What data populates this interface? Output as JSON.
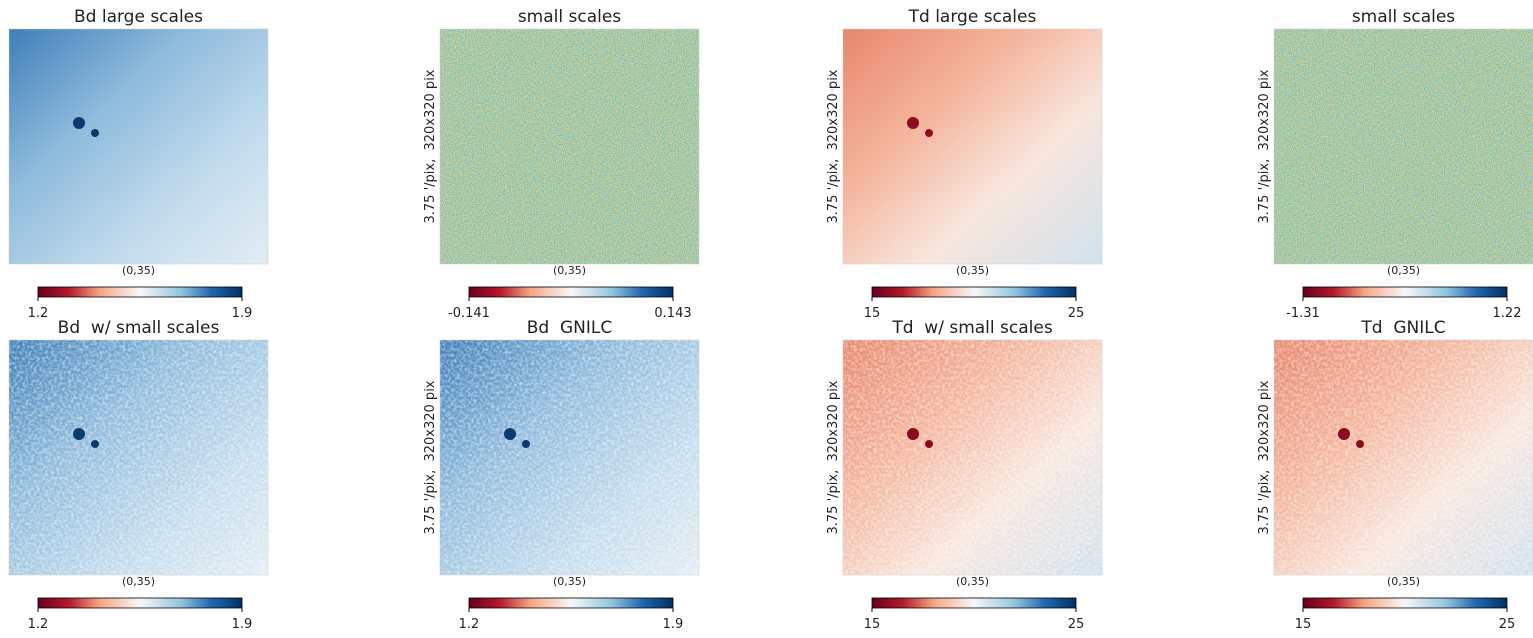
{
  "panels": [
    {
      "title": "Bd large scales",
      "coord_label": "(0,35)",
      "colorbar": {
        "min": 1.2,
        "max": 1.9
      }
    },
    {
      "title": "small scales",
      "coord_label": "(0,35)",
      "side_label": "3.75 '/pix,  320x320 pix",
      "colorbar": {
        "min": -0.141,
        "max": 0.143
      }
    },
    {
      "title": "Td large scales",
      "coord_label": "(0,35)",
      "side_label": "3.75 '/pix,  320x320 pix",
      "colorbar": {
        "min": 15,
        "max": 25
      }
    },
    {
      "title": "small scales",
      "coord_label": "(0,35)",
      "side_label": "3.75 '/pix,  320x320 pix",
      "colorbar": {
        "min": -1.31,
        "max": 1.22
      }
    },
    {
      "title": "Bd  w/ small scales",
      "coord_label": "(0,35)",
      "colorbar": {
        "min": 1.2,
        "max": 1.9
      }
    },
    {
      "title": "Bd  GNILC",
      "coord_label": "(0,35)",
      "side_label": "3.75 '/pix,  320x320 pix",
      "colorbar": {
        "min": 1.2,
        "max": 1.9
      }
    },
    {
      "title": "Td  w/ small scales",
      "coord_label": "(0,35)",
      "side_label": "3.75 '/pix,  320x320 pix",
      "colorbar": {
        "min": 15,
        "max": 25
      }
    },
    {
      "title": "Td  GNILC",
      "coord_label": "(0,35)",
      "side_label": "3.75 '/pix,  320x320 pix",
      "colorbar": {
        "min": 15,
        "max": 25
      }
    }
  ]
}
